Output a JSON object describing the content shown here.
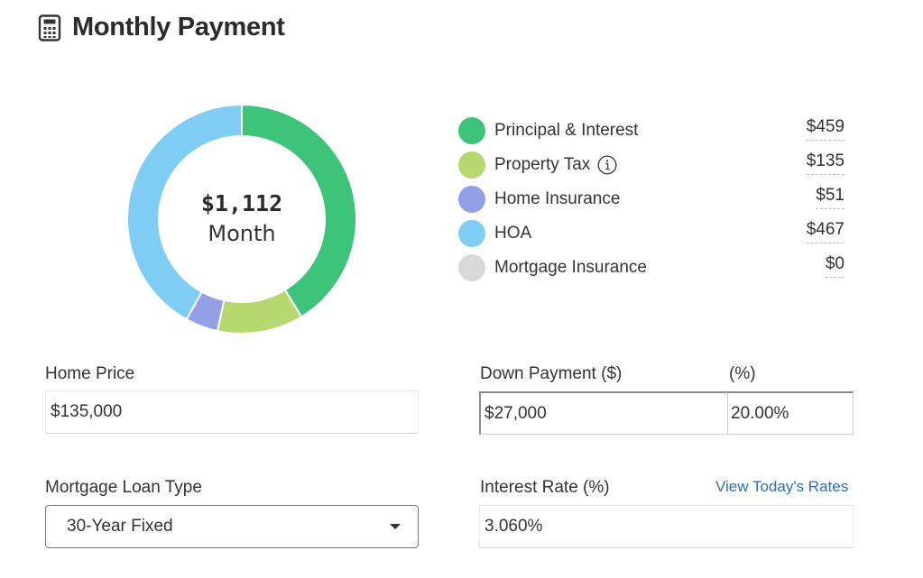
{
  "header": {
    "title": "Monthly Payment",
    "icon": "calculator-icon"
  },
  "donut": {
    "amount": "$1,112",
    "label": "Month",
    "segments": [
      {
        "name": "Principal & Interest",
        "value": 459,
        "color": "#3ec47a"
      },
      {
        "name": "Property Tax",
        "value": 135,
        "color": "#b5d96e"
      },
      {
        "name": "Home Insurance",
        "value": 51,
        "color": "#939fe6"
      },
      {
        "name": "HOA",
        "value": 467,
        "color": "#7fcdf4"
      },
      {
        "name": "Mortgage Insurance",
        "value": 0,
        "color": "#d8d8d8"
      }
    ]
  },
  "legend": {
    "items": [
      {
        "label": "Principal & Interest",
        "value": "$459",
        "color": "#3ec47a"
      },
      {
        "label": "Property Tax",
        "value": "$135",
        "color": "#b5d96e",
        "icon": "info-icon"
      },
      {
        "label": "Home Insurance",
        "value": "$51",
        "color": "#939fe6"
      },
      {
        "label": "HOA",
        "value": "$467",
        "color": "#7fcdf4"
      },
      {
        "label": "Mortgage Insurance",
        "value": "$0",
        "color": "#d8d8d8"
      }
    ]
  },
  "form": {
    "home_price": {
      "label": "Home Price",
      "value": "$135,000"
    },
    "down_payment": {
      "label": "Down Payment ($)",
      "value": "$27,000"
    },
    "down_payment_pct": {
      "label": "(%)",
      "value": "20.00%"
    },
    "loan_type": {
      "label": "Mortgage Loan Type",
      "selected": "30-Year Fixed"
    },
    "interest_rate": {
      "label": "Interest Rate (%)",
      "value": "3.060%",
      "link": "View Today's Rates"
    }
  },
  "colors": {
    "link": "#2a6cc2",
    "title": "#2b2b2b"
  }
}
